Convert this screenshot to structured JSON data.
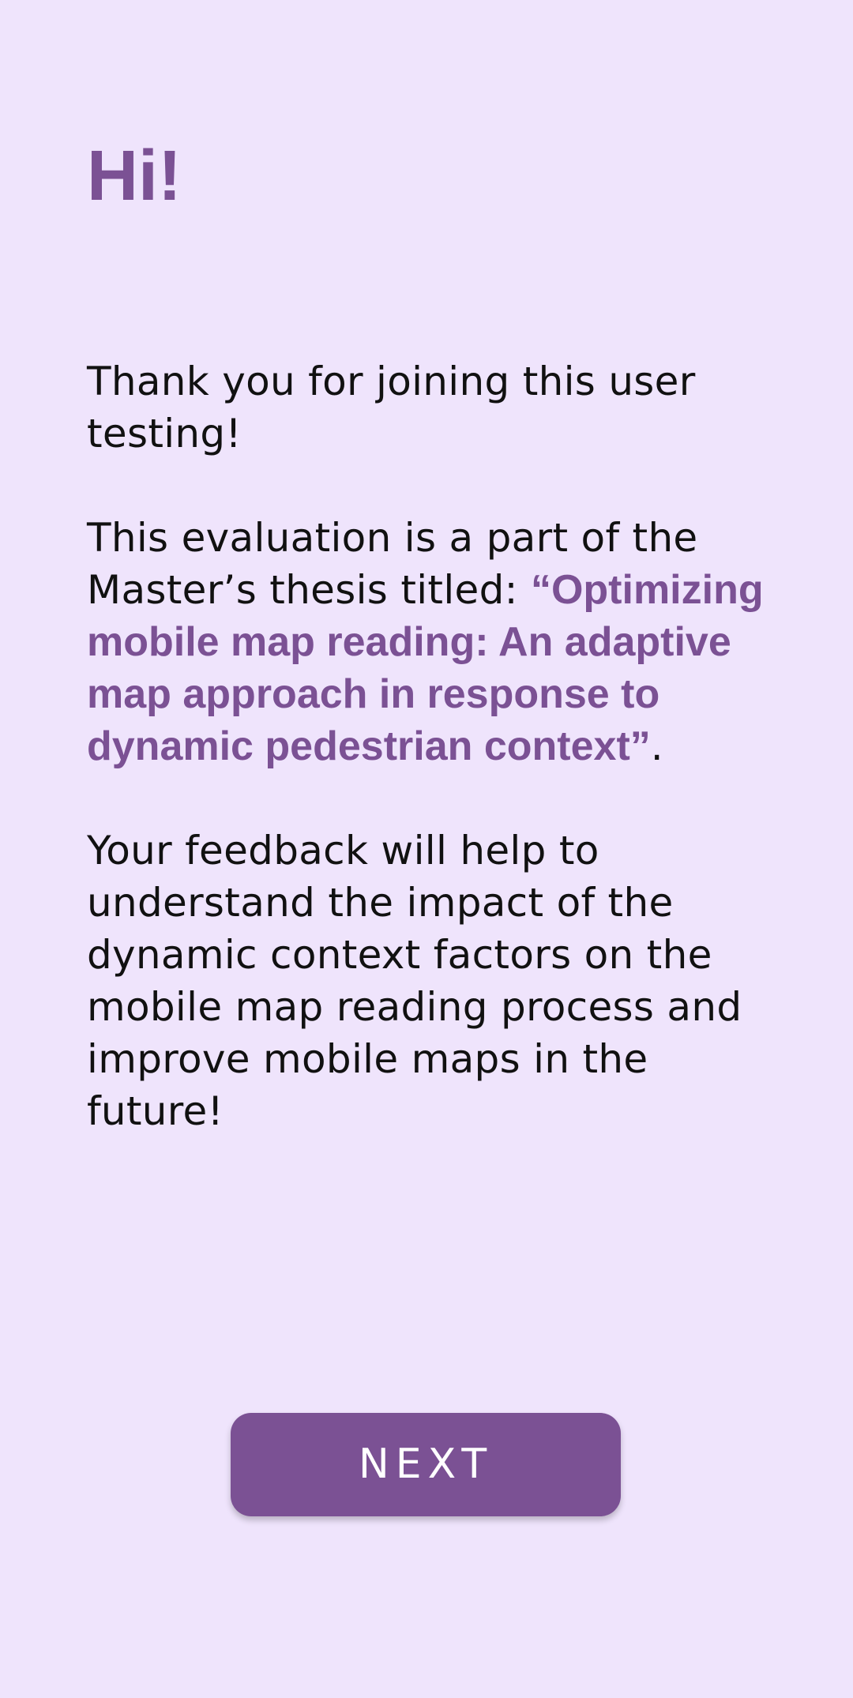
{
  "screen": {
    "title": "Hi!",
    "intro": "Thank you for joining this user testing!",
    "thesis_prefix": "This evaluation is a part of the Master’s thesis titled: ",
    "thesis_title": "“Optimizing mobile map reading: An adaptive map approach in response to dynamic pedestrian context”",
    "thesis_suffix": ".",
    "feedback": "Your feedback will help to understand the impact of the dynamic context factors on the mobile map reading process and improve mobile maps in the future!",
    "next_label": "NEXT"
  },
  "colors": {
    "background": "#EFE4FC",
    "accent": "#7B5194",
    "text": "#111111",
    "button_text": "#FFFFFF"
  }
}
